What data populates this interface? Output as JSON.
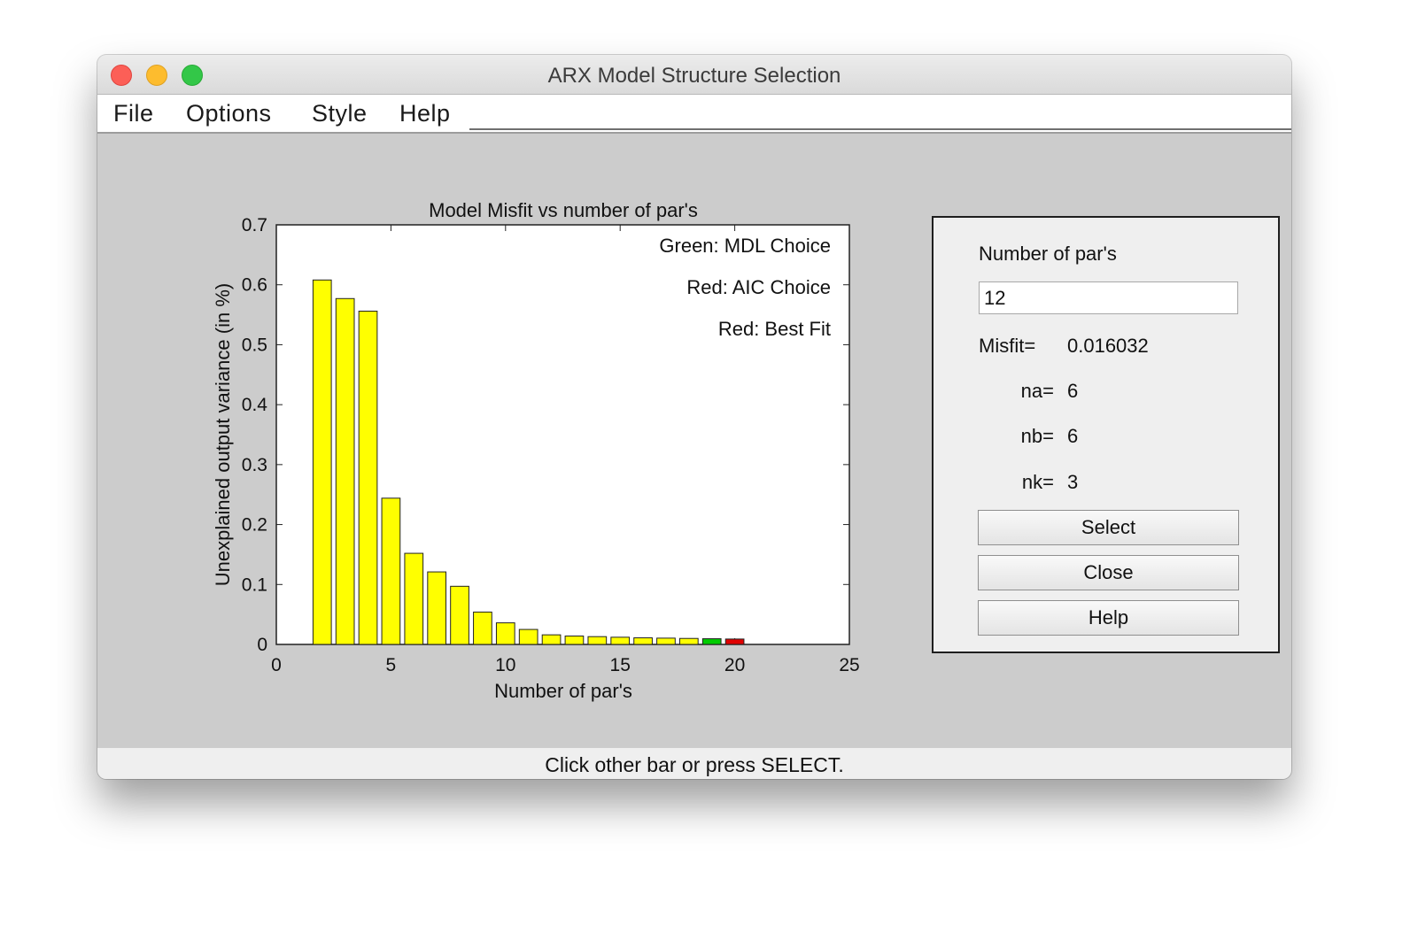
{
  "window": {
    "title": "ARX Model Structure Selection"
  },
  "menu": {
    "items": [
      "File",
      "Options",
      "Style",
      "Help"
    ]
  },
  "status": {
    "text": "Click other bar or press SELECT."
  },
  "panel": {
    "number_label": "Number of par's",
    "number_value": "12",
    "misfit_label": "Misfit=",
    "misfit_value": "0.016032",
    "na_label": "na=",
    "na_value": "6",
    "nb_label": "nb=",
    "nb_value": "6",
    "nk_label": "nk=",
    "nk_value": "3",
    "buttons": {
      "select": "Select",
      "close": "Close",
      "help": "Help"
    }
  },
  "colors": {
    "default_bar": "#ffff00",
    "mdl_bar": "#00cc00",
    "aic_bar": "#e00000"
  },
  "chart_data": {
    "type": "bar",
    "title": "Model Misfit vs number of par's",
    "xlabel": "Number of par's",
    "ylabel": "Unexplained output variance (in %)",
    "xlim": [
      0,
      25
    ],
    "ylim": [
      0,
      0.7
    ],
    "xticks": [
      0,
      5,
      10,
      15,
      20,
      25
    ],
    "yticks": [
      0,
      0.1,
      0.2,
      0.3,
      0.4,
      0.5,
      0.6,
      0.7
    ],
    "x": [
      2,
      3,
      4,
      5,
      6,
      7,
      8,
      9,
      10,
      11,
      12,
      13,
      14,
      15,
      16,
      17,
      18,
      19,
      20
    ],
    "values": [
      0.608,
      0.577,
      0.556,
      0.244,
      0.152,
      0.121,
      0.097,
      0.054,
      0.036,
      0.025,
      0.016,
      0.014,
      0.013,
      0.012,
      0.011,
      0.0105,
      0.01,
      0.0095,
      0.009
    ],
    "highlight": {
      "mdl": 19,
      "aic": 20
    },
    "annotations": [
      "Green: MDL Choice",
      "Red: AIC Choice",
      "Red: Best Fit"
    ]
  }
}
